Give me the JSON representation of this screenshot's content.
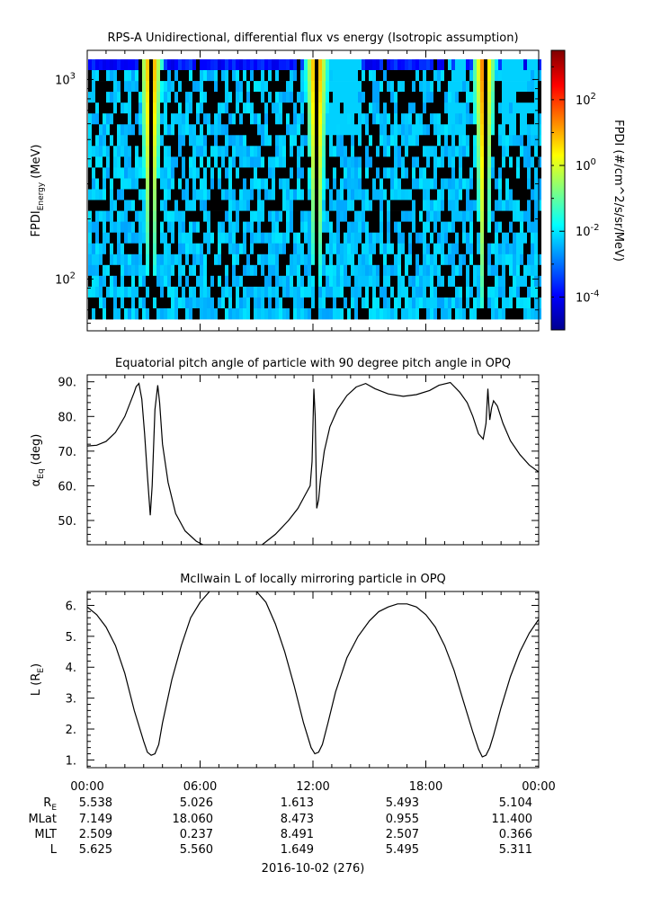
{
  "chart_data": [
    {
      "type": "heatmap",
      "title": "RPS-A Unidirectional, differential flux vs energy (Isotropic assumption)",
      "ylabel_main": "FPDI",
      "ylabel_sub": "Energy",
      "ylabel_unit": "(MeV)",
      "yscale": "log",
      "ylim": [
        55,
        1400
      ],
      "y_ticks": [
        {
          "value": 100,
          "base": "10",
          "exp": "2"
        },
        {
          "value": 1000,
          "base": "10",
          "exp": "3"
        }
      ],
      "xlim_hours": [
        0,
        24
      ],
      "colorbar": {
        "label": "FPDI (#/cm^2/s/sr/MeV)",
        "scale": "log",
        "range_exp": [
          -5,
          3.5
        ],
        "ticks": [
          {
            "exp": "2",
            "value": 2
          },
          {
            "exp": "0",
            "value": 0
          },
          {
            "exp": "-2",
            "value": -2
          },
          {
            "exp": "-4",
            "value": -4
          }
        ],
        "colors": [
          "#00008f",
          "#0000ff",
          "#0080ff",
          "#00ffff",
          "#80ff80",
          "#ffff00",
          "#ff8000",
          "#ff0000",
          "#800000"
        ]
      },
      "flux_peaks_hours": [
        3.4,
        12.2,
        21.1
      ],
      "data_gaps_hours": [
        3.4,
        12.2,
        21.1
      ]
    },
    {
      "type": "line",
      "title": "Equatorial pitch angle of particle with 90 degree pitch angle in OPQ",
      "ylabel_main": "α",
      "ylabel_sub": "Eq",
      "ylabel_unit": "(deg)",
      "ylim": [
        43,
        92
      ],
      "y_ticks": [
        "50.",
        "60.",
        "70.",
        "80.",
        "90."
      ],
      "xlim_hours": [
        0,
        24
      ],
      "x": [
        0,
        0.5,
        1,
        1.5,
        2,
        2.5,
        2.6,
        2.75,
        2.9,
        3.05,
        3.2,
        3.35,
        3.45,
        3.6,
        3.75,
        3.85,
        4,
        4.3,
        4.7,
        5.2,
        5.8,
        6.5,
        7.2,
        8.5,
        9.3,
        10,
        10.7,
        11.2,
        11.6,
        11.85,
        11.95,
        12.05,
        12.12,
        12.2,
        12.3,
        12.4,
        12.6,
        12.9,
        13.3,
        13.8,
        14.3,
        14.8,
        15.3,
        16,
        16.8,
        17.5,
        18.2,
        18.7,
        19.3,
        19.8,
        20.2,
        20.5,
        20.8,
        21.05,
        21.2,
        21.3,
        21.4,
        21.5,
        21.6,
        21.8,
        22.1,
        22.5,
        23,
        23.5,
        24
      ],
      "y": [
        71.5,
        71.7,
        72.8,
        75.4,
        80,
        87,
        88.6,
        89.5,
        85,
        75,
        63,
        51.5,
        60,
        82,
        89,
        84,
        72,
        61,
        52,
        47,
        44,
        42,
        41,
        41,
        43,
        46,
        50,
        53.5,
        57.5,
        60,
        67,
        88,
        80,
        53.5,
        56,
        62,
        70,
        77,
        82,
        86,
        88.5,
        89.5,
        88,
        86.5,
        85.8,
        86.3,
        87.5,
        89,
        89.8,
        87,
        84,
        80,
        75,
        73.5,
        78,
        88,
        79,
        82.5,
        84.5,
        83,
        78,
        73,
        69,
        66,
        64
      ]
    },
    {
      "type": "line",
      "title": "McIlwain L of locally mirroring particle in OPQ",
      "ylabel_main": "L (R",
      "ylabel_sub": "E",
      "ylabel_unit": ")",
      "ylim": [
        0.75,
        6.45
      ],
      "y_ticks": [
        "1.",
        "2.",
        "3.",
        "4.",
        "5.",
        "6."
      ],
      "xlim_hours": [
        0,
        24
      ],
      "x": [
        0,
        0.5,
        1,
        1.5,
        2,
        2.5,
        3,
        3.2,
        3.4,
        3.6,
        3.8,
        4,
        4.5,
        5,
        5.5,
        6,
        6.5,
        7,
        7.5,
        8.5,
        9,
        9.5,
        10,
        10.5,
        11,
        11.5,
        11.9,
        12.1,
        12.3,
        12.5,
        12.8,
        13.2,
        13.8,
        14.4,
        15,
        15.5,
        16,
        16.5,
        17,
        17.5,
        18,
        18.5,
        19,
        19.5,
        20,
        20.5,
        20.8,
        21,
        21.2,
        21.4,
        21.6,
        22,
        22.5,
        23,
        23.5,
        24
      ],
      "y": [
        5.95,
        5.7,
        5.3,
        4.7,
        3.8,
        2.6,
        1.6,
        1.25,
        1.15,
        1.2,
        1.5,
        2.2,
        3.6,
        4.7,
        5.6,
        6.1,
        6.45,
        6.6,
        6.6,
        6.6,
        6.45,
        6.1,
        5.4,
        4.5,
        3.4,
        2.2,
        1.4,
        1.2,
        1.25,
        1.5,
        2.2,
        3.2,
        4.3,
        5.0,
        5.5,
        5.8,
        5.95,
        6.05,
        6.05,
        5.95,
        5.7,
        5.3,
        4.7,
        3.9,
        2.9,
        1.9,
        1.35,
        1.1,
        1.15,
        1.4,
        1.8,
        2.7,
        3.7,
        4.5,
        5.1,
        5.55
      ]
    }
  ],
  "time_axis": {
    "ticks": [
      {
        "hour": 0,
        "label": "00:00"
      },
      {
        "hour": 6,
        "label": "06:00"
      },
      {
        "hour": 12,
        "label": "12:00"
      },
      {
        "hour": 18,
        "label": "18:00"
      },
      {
        "hour": 24,
        "label": "00:00"
      }
    ],
    "ephemeris": [
      {
        "label": "R",
        "sub": "E",
        "values": [
          "5.538",
          "5.026",
          "1.613",
          "5.493",
          "5.104"
        ]
      },
      {
        "label": "MLat",
        "sub": "",
        "values": [
          "7.149",
          "18.060",
          "8.473",
          "0.955",
          "11.400"
        ]
      },
      {
        "label": "MLT",
        "sub": "",
        "values": [
          "2.509",
          "0.237",
          "8.491",
          "2.507",
          "0.366"
        ]
      },
      {
        "label": "L",
        "sub": "",
        "values": [
          "5.625",
          "5.560",
          "1.649",
          "5.495",
          "5.311"
        ]
      }
    ],
    "date_label": "2016-10-02 (276)"
  }
}
